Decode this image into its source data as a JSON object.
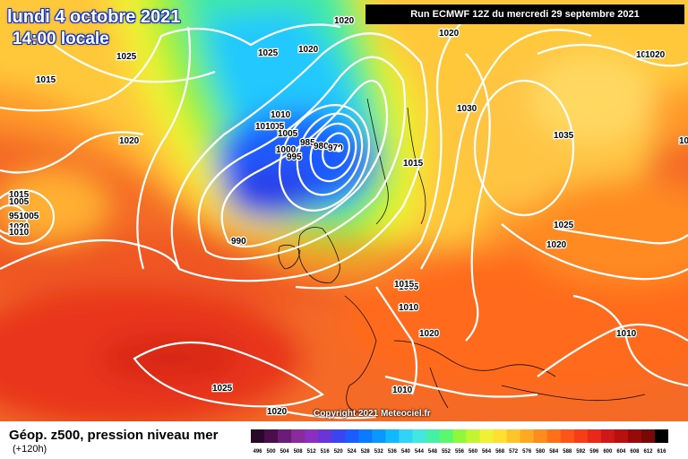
{
  "map": {
    "title_date": "lundi 4 octobre 2021",
    "title_time": "14:00 locale",
    "run_info": "Run ECMWF 12Z du mercredi 29 septembre 2021",
    "copyright": "Copyright 2021 Meteociel.fr",
    "legend_title": "Géop. z500, pression niveau mer",
    "legend_subtitle": "(+120h)",
    "pressure_labels": [
      {
        "text": "1020"
      },
      {
        "text": "1025"
      },
      {
        "text": "1015"
      },
      {
        "text": "1020"
      },
      {
        "text": "1010"
      },
      {
        "text": "1005"
      },
      {
        "text": "1005"
      },
      {
        "text": "1015"
      },
      {
        "text": "1010"
      },
      {
        "text": "1025"
      },
      {
        "text": "1020"
      },
      {
        "text": "1010"
      },
      {
        "text": "1010"
      },
      {
        "text": "1005"
      },
      {
        "text": "1000"
      },
      {
        "text": "995"
      },
      {
        "text": "985"
      },
      {
        "text": "980"
      },
      {
        "text": "970"
      },
      {
        "text": "990"
      },
      {
        "text": "1020"
      },
      {
        "text": "1010"
      },
      {
        "text": "1030"
      },
      {
        "text": "1025"
      },
      {
        "text": "1035"
      },
      {
        "text": "1015"
      },
      {
        "text": "1025"
      },
      {
        "text": "1020"
      },
      {
        "text": "1015"
      },
      {
        "text": "1010"
      },
      {
        "text": "1020"
      },
      {
        "text": "1010"
      },
      {
        "text": "1025"
      },
      {
        "text": "1020"
      },
      {
        "text": "1020"
      },
      {
        "text": "1020"
      },
      {
        "text": "1005"
      },
      {
        "text": "1010"
      },
      {
        "text": "951005"
      }
    ],
    "scale_values": [
      "496",
      "500",
      "504",
      "508",
      "512",
      "516",
      "520",
      "524",
      "528",
      "532",
      "536",
      "540",
      "544",
      "548",
      "552",
      "556",
      "560",
      "564",
      "568",
      "572",
      "576",
      "580",
      "584",
      "588",
      "592",
      "596",
      "600",
      "604",
      "608",
      "612",
      "616"
    ],
    "scale_colors": [
      "#2a0828",
      "#4a0f4a",
      "#6a1c78",
      "#8a2a9c",
      "#8c2ec0",
      "#6a35d8",
      "#3c44f0",
      "#1a5cff",
      "#0a7aff",
      "#0898ff",
      "#10b8ff",
      "#30d4f8",
      "#40e8e0",
      "#44f0a8",
      "#5af870",
      "#90f83c",
      "#c4f430",
      "#eef232",
      "#ffe030",
      "#ffc428",
      "#ffa820",
      "#ff8c1c",
      "#ff7018",
      "#ff5418",
      "#f83c18",
      "#e82818",
      "#d01818",
      "#b81010",
      "#980a0a",
      "#780808",
      "#000000"
    ]
  }
}
